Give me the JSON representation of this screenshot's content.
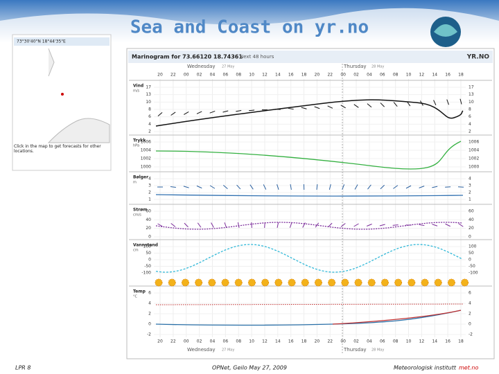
{
  "slide": {
    "title": "Sea and Coast on yr.no",
    "footer_left": "LPR 8",
    "footer_center": "OPNet, Geilo May 27, 2009",
    "footer_right": "Meteorologisk institutt",
    "footer_right_brand": "met.no"
  },
  "map_panel": {
    "coordinates": "73°30'40\"N 18°44'35\"E",
    "instruction": "Click in the map to get forecasts for other locations."
  },
  "marinogram": {
    "title": "Marinogram for 73.66120 18.74361",
    "subtitle": "Next 48 hours",
    "logo": "YR.NO",
    "days": [
      "Wednesday",
      "Thursday"
    ],
    "day_dates": [
      "27 May",
      "28 May"
    ],
    "hours": [
      "20",
      "22",
      "00",
      "02",
      "04",
      "06",
      "08",
      "10",
      "12",
      "14",
      "16",
      "18",
      "20",
      "22",
      "00",
      "02",
      "04",
      "06",
      "08",
      "10",
      "12",
      "14",
      "16",
      "18"
    ],
    "panels": [
      {
        "label": "Vind",
        "unit": "m/s",
        "ticks": [
          "17",
          "13",
          "10",
          "8",
          "6",
          "4",
          "2"
        ]
      },
      {
        "label": "Trykk",
        "unit": "hPa",
        "ticks": [
          "1006",
          "1004",
          "1002",
          "1000"
        ]
      },
      {
        "label": "Bølger",
        "unit": "m",
        "ticks": [
          "4",
          "3",
          "2",
          "1"
        ]
      },
      {
        "label": "Strøm",
        "unit": "cm/s",
        "ticks": [
          "60",
          "40",
          "20",
          "0"
        ]
      },
      {
        "label": "Vannstand",
        "unit": "cm",
        "ticks": [
          "100",
          "50",
          "0",
          "-50",
          "-100"
        ]
      },
      {
        "label": "Temp",
        "unit": "°C",
        "ticks": [
          "6",
          "4",
          "2",
          "0",
          "-2"
        ]
      }
    ]
  }
}
